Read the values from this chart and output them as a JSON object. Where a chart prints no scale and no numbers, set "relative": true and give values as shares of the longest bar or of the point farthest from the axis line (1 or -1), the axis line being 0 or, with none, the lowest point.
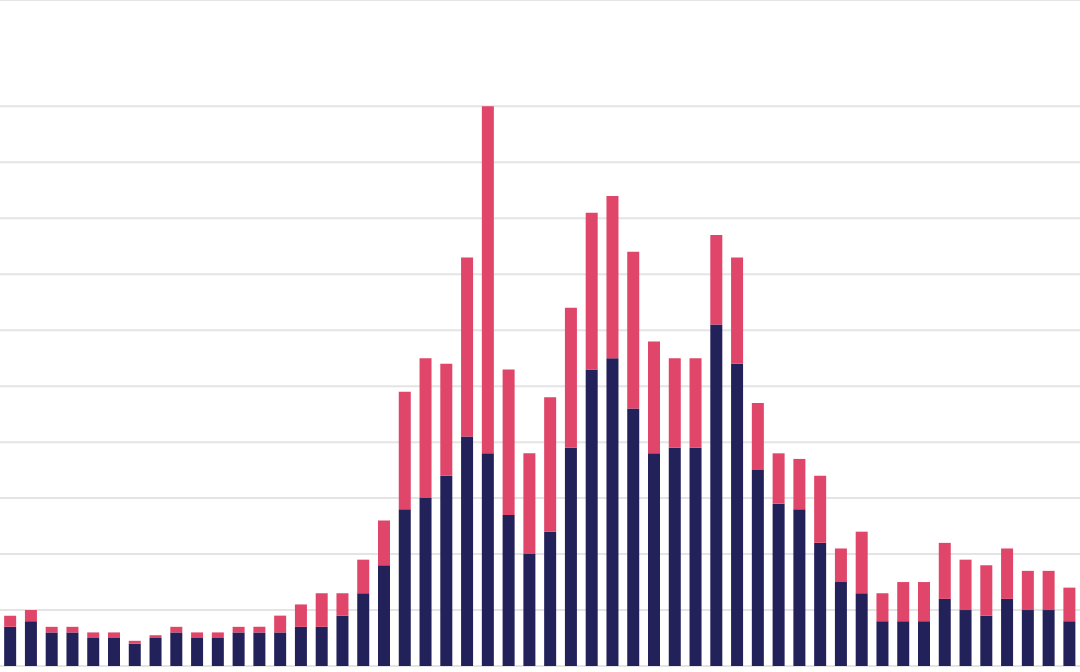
{
  "chart_data": {
    "type": "bar",
    "stacked": true,
    "relative": true,
    "grid": "y",
    "categories": [
      null,
      null,
      null,
      null,
      null,
      null,
      null,
      null,
      null,
      null,
      null,
      null,
      null,
      null,
      null,
      null,
      null,
      null,
      null,
      null,
      null,
      null,
      null,
      null,
      null,
      null,
      null,
      null,
      null,
      null,
      null,
      null,
      null,
      null,
      null,
      null,
      null,
      null,
      null,
      null,
      null,
      null,
      null,
      null,
      null,
      null,
      null,
      null,
      null,
      null,
      null,
      null
    ],
    "series": [
      {
        "color": "#23215a",
        "values": [
          0.07,
          0.08,
          0.06,
          0.06,
          0.05,
          0.05,
          0.04,
          0.05,
          0.06,
          0.05,
          0.05,
          0.06,
          0.06,
          0.06,
          0.07,
          0.07,
          0.09,
          0.13,
          0.18,
          0.28,
          0.3,
          0.34,
          0.41,
          0.38,
          0.27,
          0.2,
          0.24,
          0.39,
          0.53,
          0.55,
          0.46,
          0.38,
          0.39,
          0.39,
          0.61,
          0.54,
          0.35,
          0.29,
          0.28,
          0.22,
          0.15,
          0.13,
          0.08,
          0.08,
          0.08,
          0.12,
          0.1,
          0.09,
          0.12,
          0.1,
          0.1,
          0.08
        ]
      },
      {
        "color": "#e0456a",
        "values": [
          0.02,
          0.02,
          0.01,
          0.01,
          0.01,
          0.01,
          0.005,
          0.005,
          0.01,
          0.01,
          0.01,
          0.01,
          0.01,
          0.03,
          0.04,
          0.06,
          0.04,
          0.06,
          0.08,
          0.21,
          0.25,
          0.2,
          0.32,
          0.62,
          0.26,
          0.18,
          0.24,
          0.25,
          0.28,
          0.29,
          0.28,
          0.2,
          0.16,
          0.16,
          0.16,
          0.19,
          0.12,
          0.09,
          0.09,
          0.12,
          0.06,
          0.11,
          0.05,
          0.07,
          0.07,
          0.1,
          0.09,
          0.09,
          0.09,
          0.07,
          0.07,
          0.06
        ]
      }
    ]
  }
}
